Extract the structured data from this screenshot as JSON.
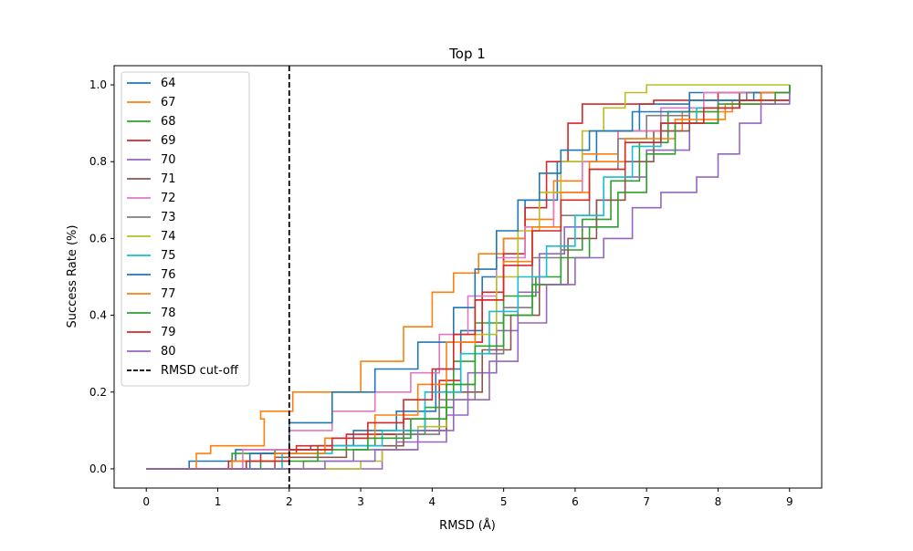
{
  "chart_data": {
    "type": "line",
    "title": "Top 1",
    "xlabel": "RMSD (Å)",
    "ylabel": "Success Rate (%)",
    "xlim": [
      -0.45,
      9.45
    ],
    "ylim": [
      -0.05,
      1.05
    ],
    "xticks": [
      0,
      1,
      2,
      3,
      4,
      5,
      6,
      7,
      8,
      9
    ],
    "yticks": [
      0.0,
      0.2,
      0.4,
      0.6,
      0.8,
      1.0
    ],
    "xtick_labels": [
      "0",
      "1",
      "2",
      "3",
      "4",
      "5",
      "6",
      "7",
      "8",
      "9"
    ],
    "ytick_labels": [
      "0.0",
      "0.2",
      "0.4",
      "0.6",
      "0.8",
      "1.0"
    ],
    "grid": false,
    "legend": "upper left",
    "cutoff": {
      "name": "RMSD cut-off",
      "x": 2,
      "color": "#000000",
      "style": "dashed"
    },
    "series": [
      {
        "name": "64",
        "color": "#1f77b4",
        "points": [
          [
            0,
            0
          ],
          [
            0.6,
            0.02
          ],
          [
            1.25,
            0.05
          ],
          [
            2.3,
            0.06
          ],
          [
            2.9,
            0.1
          ],
          [
            3.5,
            0.15
          ],
          [
            4.05,
            0.26
          ],
          [
            4.4,
            0.36
          ],
          [
            4.7,
            0.5
          ],
          [
            5.0,
            0.6
          ],
          [
            5.3,
            0.7
          ],
          [
            5.75,
            0.8
          ],
          [
            6.3,
            0.88
          ],
          [
            6.9,
            0.95
          ],
          [
            7.6,
            0.98
          ],
          [
            8.3,
            0.98
          ],
          [
            9.0,
            1.0
          ]
        ]
      },
      {
        "name": "67",
        "color": "#ff7f0e",
        "points": [
          [
            0,
            0
          ],
          [
            0.7,
            0.04
          ],
          [
            0.9,
            0.06
          ],
          [
            1.65,
            0.13
          ],
          [
            1.6,
            0.15
          ],
          [
            2.05,
            0.2
          ],
          [
            3.0,
            0.28
          ],
          [
            3.6,
            0.37
          ],
          [
            4.0,
            0.46
          ],
          [
            4.3,
            0.51
          ],
          [
            4.65,
            0.56
          ],
          [
            5.0,
            0.6
          ],
          [
            5.3,
            0.65
          ],
          [
            5.7,
            0.75
          ],
          [
            6.1,
            0.82
          ],
          [
            6.6,
            0.88
          ],
          [
            7.5,
            0.93
          ],
          [
            8.2,
            0.96
          ],
          [
            9.0,
            1.0
          ]
        ]
      },
      {
        "name": "68",
        "color": "#2ca02c",
        "points": [
          [
            0,
            0
          ],
          [
            1.2,
            0.04
          ],
          [
            1.8,
            0.05
          ],
          [
            2.4,
            0.06
          ],
          [
            3.2,
            0.09
          ],
          [
            3.9,
            0.16
          ],
          [
            4.3,
            0.28
          ],
          [
            4.6,
            0.38
          ],
          [
            5.0,
            0.45
          ],
          [
            5.45,
            0.5
          ],
          [
            5.8,
            0.57
          ],
          [
            6.1,
            0.65
          ],
          [
            6.5,
            0.75
          ],
          [
            6.9,
            0.85
          ],
          [
            7.3,
            0.93
          ],
          [
            8.0,
            0.96
          ],
          [
            8.6,
            0.98
          ],
          [
            9.0,
            1.0
          ]
        ]
      },
      {
        "name": "69",
        "color": "#d62728",
        "points": [
          [
            0,
            0
          ],
          [
            1.15,
            0.02
          ],
          [
            1.6,
            0.04
          ],
          [
            2.1,
            0.06
          ],
          [
            2.8,
            0.09
          ],
          [
            3.6,
            0.13
          ],
          [
            4.1,
            0.23
          ],
          [
            4.4,
            0.33
          ],
          [
            4.7,
            0.46
          ],
          [
            5.0,
            0.56
          ],
          [
            5.3,
            0.68
          ],
          [
            5.6,
            0.8
          ],
          [
            5.9,
            0.9
          ],
          [
            6.1,
            0.95
          ],
          [
            7.1,
            0.96
          ],
          [
            8.0,
            0.98
          ],
          [
            9.0,
            1.0
          ]
        ]
      },
      {
        "name": "70",
        "color": "#9467bd",
        "points": [
          [
            0,
            0
          ],
          [
            3.3,
            0.05
          ],
          [
            3.5,
            0.07
          ],
          [
            4.2,
            0.14
          ],
          [
            4.5,
            0.25
          ],
          [
            4.9,
            0.36
          ],
          [
            5.2,
            0.46
          ],
          [
            5.5,
            0.56
          ],
          [
            5.85,
            0.63
          ],
          [
            6.3,
            0.7
          ],
          [
            6.7,
            0.76
          ],
          [
            7.0,
            0.83
          ],
          [
            7.6,
            0.9
          ],
          [
            8.0,
            0.96
          ],
          [
            8.3,
            0.98
          ],
          [
            9.0,
            1.0
          ]
        ]
      },
      {
        "name": "71",
        "color": "#8c564b",
        "points": [
          [
            0,
            0
          ],
          [
            1.8,
            0.03
          ],
          [
            2.8,
            0.06
          ],
          [
            3.6,
            0.1
          ],
          [
            4.2,
            0.2
          ],
          [
            4.7,
            0.31
          ],
          [
            5.1,
            0.4
          ],
          [
            5.5,
            0.48
          ],
          [
            5.9,
            0.6
          ],
          [
            6.3,
            0.7
          ],
          [
            6.7,
            0.8
          ],
          [
            7.1,
            0.88
          ],
          [
            7.6,
            0.94
          ],
          [
            8.3,
            0.98
          ],
          [
            9.0,
            1.0
          ]
        ]
      },
      {
        "name": "72",
        "color": "#e377c2",
        "points": [
          [
            0,
            0
          ],
          [
            1.35,
            0.05
          ],
          [
            2.0,
            0.1
          ],
          [
            2.6,
            0.15
          ],
          [
            3.2,
            0.2
          ],
          [
            3.7,
            0.25
          ],
          [
            4.1,
            0.35
          ],
          [
            4.5,
            0.45
          ],
          [
            4.9,
            0.55
          ],
          [
            5.3,
            0.63
          ],
          [
            5.7,
            0.72
          ],
          [
            6.1,
            0.8
          ],
          [
            6.6,
            0.88
          ],
          [
            7.2,
            0.94
          ],
          [
            7.8,
            0.98
          ],
          [
            9.0,
            1.0
          ]
        ]
      },
      {
        "name": "73",
        "color": "#7f7f7f",
        "points": [
          [
            0,
            0
          ],
          [
            2.2,
            0.02
          ],
          [
            2.9,
            0.05
          ],
          [
            3.5,
            0.09
          ],
          [
            4.1,
            0.18
          ],
          [
            4.6,
            0.3
          ],
          [
            5.0,
            0.42
          ],
          [
            5.4,
            0.55
          ],
          [
            5.8,
            0.66
          ],
          [
            6.2,
            0.78
          ],
          [
            6.6,
            0.86
          ],
          [
            7.0,
            0.92
          ],
          [
            7.6,
            0.96
          ],
          [
            8.4,
            0.98
          ],
          [
            9.0,
            1.0
          ]
        ]
      },
      {
        "name": "74",
        "color": "#bcbd22",
        "points": [
          [
            0,
            0
          ],
          [
            3.0,
            0.02
          ],
          [
            3.3,
            0.05
          ],
          [
            3.8,
            0.11
          ],
          [
            4.2,
            0.22
          ],
          [
            4.6,
            0.35
          ],
          [
            4.9,
            0.5
          ],
          [
            5.2,
            0.62
          ],
          [
            5.5,
            0.72
          ],
          [
            5.8,
            0.8
          ],
          [
            6.1,
            0.88
          ],
          [
            6.4,
            0.94
          ],
          [
            6.7,
            0.98
          ],
          [
            7.0,
            1.0
          ],
          [
            9.0,
            1.0
          ]
        ]
      },
      {
        "name": "75",
        "color": "#17becf",
        "points": [
          [
            0,
            0
          ],
          [
            1.9,
            0.04
          ],
          [
            2.6,
            0.06
          ],
          [
            3.3,
            0.1
          ],
          [
            3.9,
            0.2
          ],
          [
            4.4,
            0.3
          ],
          [
            4.8,
            0.41
          ],
          [
            5.2,
            0.5
          ],
          [
            5.6,
            0.58
          ],
          [
            6.0,
            0.66
          ],
          [
            6.4,
            0.76
          ],
          [
            6.8,
            0.84
          ],
          [
            7.2,
            0.9
          ],
          [
            7.7,
            0.94
          ],
          [
            8.3,
            0.96
          ],
          [
            9.0,
            1.0
          ]
        ]
      },
      {
        "name": "76",
        "color": "#1f77b4",
        "points": [
          [
            0,
            0
          ],
          [
            1.45,
            0.04
          ],
          [
            2.0,
            0.12
          ],
          [
            2.6,
            0.2
          ],
          [
            3.2,
            0.26
          ],
          [
            3.8,
            0.33
          ],
          [
            4.3,
            0.42
          ],
          [
            4.6,
            0.52
          ],
          [
            4.9,
            0.62
          ],
          [
            5.2,
            0.7
          ],
          [
            5.5,
            0.77
          ],
          [
            5.8,
            0.83
          ],
          [
            6.2,
            0.88
          ],
          [
            6.8,
            0.93
          ],
          [
            7.6,
            0.96
          ],
          [
            8.5,
            0.98
          ],
          [
            9.0,
            1.0
          ]
        ]
      },
      {
        "name": "77",
        "color": "#ff7f0e",
        "points": [
          [
            0,
            0
          ],
          [
            1.2,
            0.02
          ],
          [
            1.8,
            0.04
          ],
          [
            2.5,
            0.08
          ],
          [
            3.2,
            0.14
          ],
          [
            3.8,
            0.22
          ],
          [
            4.2,
            0.33
          ],
          [
            4.6,
            0.44
          ],
          [
            5.0,
            0.54
          ],
          [
            5.4,
            0.63
          ],
          [
            5.8,
            0.72
          ],
          [
            6.2,
            0.8
          ],
          [
            6.7,
            0.86
          ],
          [
            7.4,
            0.91
          ],
          [
            8.1,
            0.95
          ],
          [
            8.6,
            0.98
          ],
          [
            9.0,
            1.0
          ]
        ]
      },
      {
        "name": "78",
        "color": "#2ca02c",
        "points": [
          [
            0,
            0
          ],
          [
            1.6,
            0.02
          ],
          [
            2.4,
            0.05
          ],
          [
            3.1,
            0.08
          ],
          [
            3.7,
            0.13
          ],
          [
            4.2,
            0.22
          ],
          [
            4.6,
            0.32
          ],
          [
            5.0,
            0.4
          ],
          [
            5.4,
            0.48
          ],
          [
            5.8,
            0.55
          ],
          [
            6.2,
            0.63
          ],
          [
            6.6,
            0.72
          ],
          [
            7.0,
            0.82
          ],
          [
            7.4,
            0.9
          ],
          [
            8.0,
            0.95
          ],
          [
            8.8,
            0.98
          ],
          [
            9.0,
            1.0
          ]
        ]
      },
      {
        "name": "79",
        "color": "#d62728",
        "points": [
          [
            0,
            0
          ],
          [
            1.4,
            0.02
          ],
          [
            2.0,
            0.05
          ],
          [
            2.6,
            0.08
          ],
          [
            3.1,
            0.12
          ],
          [
            3.6,
            0.18
          ],
          [
            4.0,
            0.26
          ],
          [
            4.3,
            0.35
          ],
          [
            4.6,
            0.44
          ],
          [
            5.0,
            0.53
          ],
          [
            5.4,
            0.62
          ],
          [
            5.8,
            0.7
          ],
          [
            6.2,
            0.78
          ],
          [
            6.7,
            0.85
          ],
          [
            7.2,
            0.9
          ],
          [
            7.8,
            0.94
          ],
          [
            8.3,
            0.96
          ],
          [
            9.0,
            0.96
          ]
        ]
      },
      {
        "name": "80",
        "color": "#9467bd",
        "points": [
          [
            0,
            0
          ],
          [
            2.5,
            0.02
          ],
          [
            3.2,
            0.05
          ],
          [
            3.8,
            0.1
          ],
          [
            4.3,
            0.18
          ],
          [
            4.8,
            0.28
          ],
          [
            5.2,
            0.38
          ],
          [
            5.6,
            0.48
          ],
          [
            6.0,
            0.55
          ],
          [
            6.4,
            0.6
          ],
          [
            6.8,
            0.68
          ],
          [
            7.2,
            0.72
          ],
          [
            7.7,
            0.76
          ],
          [
            8.0,
            0.82
          ],
          [
            8.3,
            0.9
          ],
          [
            8.6,
            0.95
          ],
          [
            9.0,
            0.98
          ]
        ]
      }
    ]
  }
}
